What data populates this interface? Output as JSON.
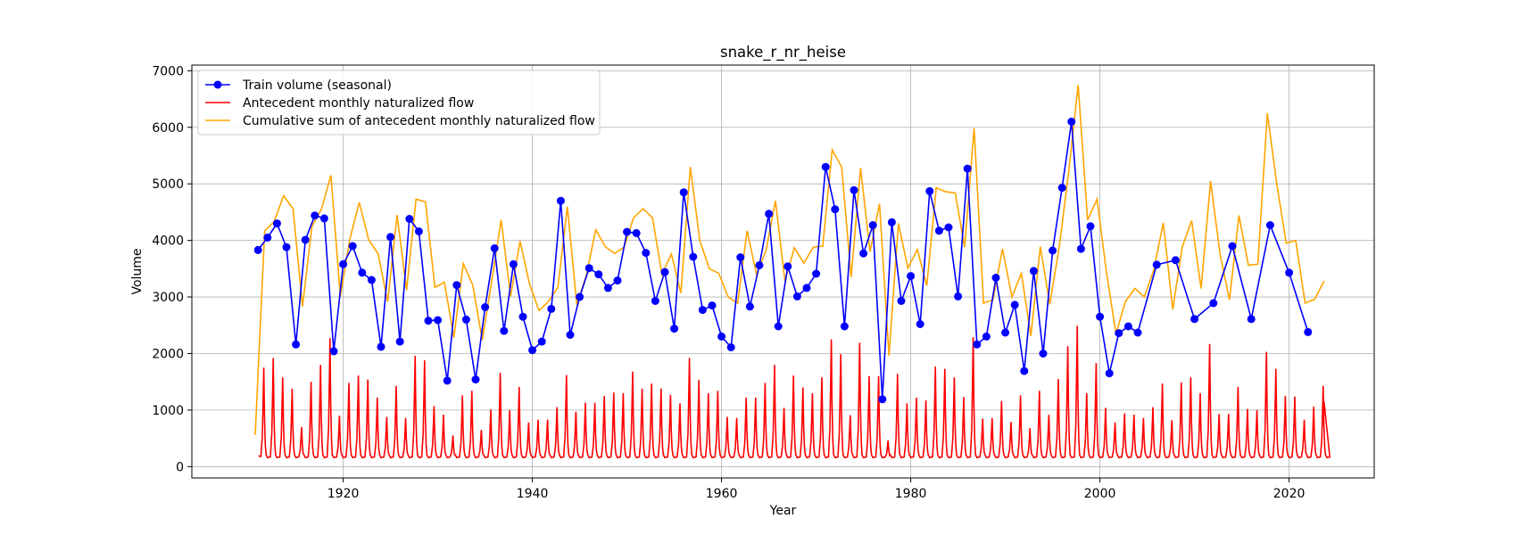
{
  "chart_data": {
    "type": "line",
    "title": "snake_r_nr_heise",
    "xlabel": "Year",
    "ylabel": "Volume",
    "xlim": [
      1904,
      2029
    ],
    "ylim": [
      -200,
      7100
    ],
    "xticks": [
      1920,
      1940,
      1960,
      1980,
      2000,
      2020
    ],
    "yticks": [
      0,
      1000,
      2000,
      3000,
      4000,
      5000,
      6000,
      7000
    ],
    "grid": true,
    "legend": "upper left",
    "series": [
      {
        "name": "Train volume (seasonal)",
        "color": "#0000ff",
        "marker": "circle",
        "x": [
          1911,
          1912,
          1913,
          1914,
          1915,
          1916,
          1917,
          1918,
          1919,
          1920,
          1921,
          1922,
          1923,
          1924,
          1925,
          1926,
          1927,
          1928,
          1929,
          1930,
          1931,
          1932,
          1933,
          1934,
          1935,
          1936,
          1937,
          1938,
          1939,
          1940,
          1941,
          1942,
          1943,
          1944,
          1945,
          1946,
          1947,
          1948,
          1949,
          1950,
          1951,
          1952,
          1953,
          1954,
          1955,
          1956,
          1957,
          1958,
          1959,
          1960,
          1961,
          1962,
          1963,
          1964,
          1965,
          1966,
          1967,
          1968,
          1969,
          1970,
          1971,
          1972,
          1973,
          1974,
          1975,
          1976,
          1977,
          1978,
          1979,
          1980,
          1981,
          1982,
          1983,
          1984,
          1985,
          1986,
          1987,
          1988,
          1989,
          1990,
          1991,
          1992,
          1993,
          1994,
          1995,
          1996,
          1997,
          1998,
          1999,
          2000,
          2001,
          2002,
          2003,
          2004,
          2006,
          2008,
          2010,
          2012,
          2014,
          2016,
          2018,
          2020,
          2022
        ],
        "y": [
          3830,
          4050,
          4300,
          3880,
          2160,
          4010,
          4440,
          4390,
          2040,
          3580,
          3900,
          3430,
          3300,
          2120,
          4060,
          2210,
          4380,
          4160,
          2580,
          2590,
          1520,
          3210,
          2600,
          1540,
          2820,
          3860,
          2400,
          3580,
          2650,
          2060,
          2210,
          2790,
          4700,
          2330,
          3000,
          3510,
          3400,
          3160,
          3290,
          4150,
          4130,
          3780,
          2930,
          3440,
          2440,
          4850,
          3710,
          2770,
          2850,
          2300,
          2110,
          3700,
          2830,
          3560,
          4470,
          2480,
          3540,
          3010,
          3160,
          3410,
          5300,
          4550,
          2480,
          4890,
          3770,
          4270,
          1190,
          4320,
          2930,
          3370,
          2520,
          4870,
          4170,
          4230,
          3010,
          5270,
          2160,
          2300,
          3340,
          2370,
          2860,
          1690,
          3460,
          2000,
          3820,
          4930,
          6100,
          3850,
          4250,
          2650,
          1650,
          2360,
          2480,
          2370,
          3570,
          3650,
          2610,
          2890,
          3900,
          2610,
          4270,
          3430,
          2380
        ]
      },
      {
        "name": "Antecedent monthly naturalized flow",
        "color": "#ff0000",
        "peak_x": [
          1911.6,
          1912.6,
          1913.6,
          1914.6,
          1915.6,
          1916.6,
          1917.6,
          1918.6,
          1919.6,
          1920.6,
          1921.6,
          1922.6,
          1923.6,
          1924.6,
          1925.6,
          1926.6,
          1927.6,
          1928.6,
          1929.6,
          1930.6,
          1931.6,
          1932.6,
          1933.6,
          1934.6,
          1935.6,
          1936.6,
          1937.6,
          1938.6,
          1939.6,
          1940.6,
          1941.6,
          1942.6,
          1943.6,
          1944.6,
          1945.6,
          1946.6,
          1947.6,
          1948.6,
          1949.6,
          1950.6,
          1951.6,
          1952.6,
          1953.6,
          1954.6,
          1955.6,
          1956.6,
          1957.6,
          1958.6,
          1959.6,
          1960.6,
          1961.6,
          1962.6,
          1963.6,
          1964.6,
          1965.6,
          1966.6,
          1967.6,
          1968.6,
          1969.6,
          1970.6,
          1971.6,
          1972.6,
          1973.6,
          1974.6,
          1975.6,
          1976.6,
          1977.6,
          1978.6,
          1979.6,
          1980.6,
          1981.6,
          1982.6,
          1983.6,
          1984.6,
          1985.6,
          1986.6,
          1987.6,
          1988.6,
          1989.6,
          1990.6,
          1991.6,
          1992.6,
          1993.6,
          1994.6,
          1995.6,
          1996.6,
          1997.6,
          1998.6,
          1999.6,
          2000.6,
          2001.6,
          2002.6,
          2003.6,
          2004.6,
          2005.6,
          2006.6,
          2007.6,
          2008.6,
          2009.6,
          2010.6,
          2011.6,
          2012.6,
          2013.6,
          2014.6,
          2015.6,
          2016.6,
          2017.6,
          2018.6,
          2019.6,
          2020.6,
          2021.6,
          2022.6,
          2023.6
        ],
        "peak_y": [
          1750,
          1920,
          1580,
          1380,
          700,
          1500,
          1800,
          2270,
          900,
          1480,
          1610,
          1540,
          1220,
          880,
          1430,
          860,
          1960,
          1880,
          1070,
          920,
          550,
          1260,
          1340,
          650,
          1010,
          1660,
          1000,
          1410,
          780,
          830,
          830,
          1050,
          1620,
          970,
          1130,
          1130,
          1250,
          1310,
          1300,
          1680,
          1380,
          1470,
          1380,
          1270,
          1120,
          1920,
          1530,
          1300,
          1340,
          880,
          860,
          1220,
          1220,
          1480,
          1800,
          1040,
          1610,
          1400,
          1300,
          1580,
          2250,
          1990,
          910,
          2190,
          1600,
          1600,
          460,
          1640,
          1120,
          1220,
          1170,
          1770,
          1730,
          1580,
          1230,
          2290,
          850,
          860,
          1160,
          790,
          1260,
          680,
          1340,
          920,
          1550,
          2130,
          2490,
          1300,
          1830,
          1040,
          780,
          940,
          920,
          860,
          1050,
          1470,
          820,
          1490,
          1580,
          1300,
          2170,
          930,
          930,
          1410,
          1020,
          1000,
          2030,
          1730,
          1250,
          1240,
          830,
          1060,
          1430
        ],
        "trough": 150,
        "x_end": 2023.7,
        "y_end": 1150
      },
      {
        "name": "Cumulative sum of antecedent monthly naturalized flow",
        "color": "#ffa500",
        "x": [
          1910.7,
          1911.7,
          1912.7,
          1913.7,
          1914.7,
          1915.7,
          1916.7,
          1917.7,
          1918.7,
          1919.7,
          1920.7,
          1921.7,
          1922.7,
          1923.7,
          1924.7,
          1925.7,
          1926.7,
          1927.7,
          1928.7,
          1929.7,
          1930.7,
          1931.7,
          1932.7,
          1933.7,
          1934.7,
          1935.7,
          1936.7,
          1937.7,
          1938.7,
          1939.7,
          1940.7,
          1941.7,
          1942.7,
          1943.7,
          1944.7,
          1945.7,
          1946.7,
          1947.7,
          1948.7,
          1949.7,
          1950.7,
          1951.7,
          1952.7,
          1953.7,
          1954.7,
          1955.7,
          1956.7,
          1957.7,
          1958.7,
          1959.7,
          1960.7,
          1961.7,
          1962.7,
          1963.7,
          1964.7,
          1965.7,
          1966.7,
          1967.7,
          1968.7,
          1969.7,
          1970.7,
          1971.7,
          1972.7,
          1973.7,
          1974.7,
          1975.7,
          1976.7,
          1977.7,
          1978.7,
          1979.7,
          1980.7,
          1981.7,
          1982.7,
          1983.7,
          1984.7,
          1985.7,
          1986.7,
          1987.7,
          1988.7,
          1989.7,
          1990.7,
          1991.7,
          1992.7,
          1993.7,
          1994.7,
          1995.7,
          1996.7,
          1997.7,
          1998.7,
          1999.7,
          2000.7,
          2001.7,
          2002.7,
          2003.7,
          2004.7,
          2005.7,
          2006.7,
          2007.7,
          2008.7,
          2009.7,
          2010.7,
          2011.7,
          2012.7,
          2013.7,
          2014.7,
          2015.7,
          2016.7,
          2017.7,
          2018.7,
          2019.7,
          2020.7,
          2021.7,
          2022.7,
          2023.7
        ],
        "y": [
          560,
          4170,
          4330,
          4790,
          4560,
          2830,
          4250,
          4550,
          5150,
          3010,
          4020,
          4670,
          4010,
          3760,
          2910,
          4450,
          3120,
          4730,
          4680,
          3170,
          3260,
          2280,
          3590,
          3210,
          2240,
          3270,
          4360,
          3010,
          3990,
          3230,
          2760,
          2920,
          3170,
          4600,
          2860,
          3380,
          4190,
          3890,
          3770,
          3880,
          4400,
          4560,
          4400,
          3400,
          3760,
          3070,
          5300,
          4000,
          3500,
          3420,
          3000,
          2890,
          4170,
          3400,
          3820,
          4700,
          3280,
          3870,
          3600,
          3880,
          3900,
          5600,
          5300,
          3350,
          5280,
          3800,
          4650,
          1960,
          4300,
          3510,
          3840,
          3200,
          4930,
          4860,
          4840,
          3880,
          5980,
          2890,
          2950,
          3850,
          3000,
          3420,
          2310,
          3890,
          2870,
          3880,
          5210,
          6750,
          4360,
          4730,
          3430,
          2350,
          2920,
          3150,
          3000,
          3480,
          4310,
          2780,
          3880,
          4350,
          3150,
          5050,
          3760,
          2950,
          4440,
          3560,
          3580,
          6250,
          5000,
          3950,
          4000,
          2890,
          2960,
          3280
        ]
      }
    ]
  }
}
